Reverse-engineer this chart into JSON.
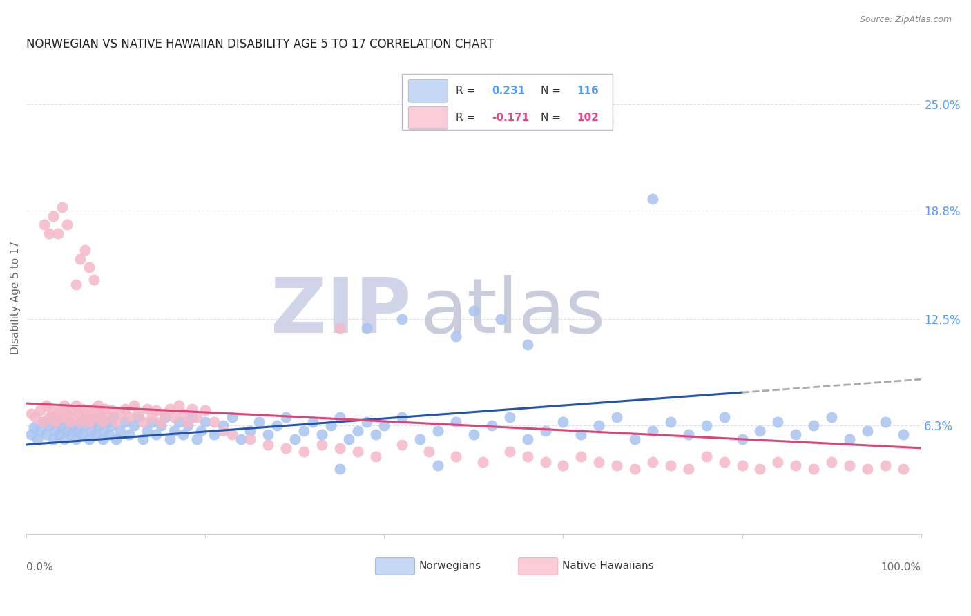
{
  "title": "NORWEGIAN VS NATIVE HAWAIIAN DISABILITY AGE 5 TO 17 CORRELATION CHART",
  "source": "Source: ZipAtlas.com",
  "ylabel": "Disability Age 5 to 17",
  "ytick_labels": [
    "6.3%",
    "12.5%",
    "18.8%",
    "25.0%"
  ],
  "ytick_values": [
    0.063,
    0.125,
    0.188,
    0.25
  ],
  "xmin": 0.0,
  "xmax": 1.0,
  "ymin": 0.0,
  "ymax": 0.275,
  "norwegian_R": "0.231",
  "norwegian_N": "116",
  "hawaiian_R": "-0.171",
  "hawaiian_N": "102",
  "blue_dot_color": "#a8c4f0",
  "pink_dot_color": "#f5b8c8",
  "blue_line_color": "#2255aa",
  "pink_line_color": "#dd4477",
  "dash_line_color": "#aaaaaa",
  "legend_blue_fill": "#c5d8f5",
  "legend_pink_fill": "#f9ccd8",
  "watermark_zip_color": "#d0d4e8",
  "watermark_atlas_color": "#c8ccdc",
  "grid_color": "#e0e0ec",
  "title_color": "#222222",
  "source_color": "#888888",
  "axis_color": "#666666",
  "right_tick_color": "#5599ff",
  "norwegian_scatter_x": [
    0.005,
    0.008,
    0.012,
    0.015,
    0.018,
    0.022,
    0.025,
    0.028,
    0.03,
    0.032,
    0.035,
    0.037,
    0.04,
    0.042,
    0.045,
    0.047,
    0.05,
    0.052,
    0.055,
    0.057,
    0.06,
    0.062,
    0.065,
    0.067,
    0.07,
    0.072,
    0.075,
    0.077,
    0.08,
    0.082,
    0.085,
    0.087,
    0.09,
    0.092,
    0.095,
    0.097,
    0.1,
    0.105,
    0.11,
    0.115,
    0.12,
    0.125,
    0.13,
    0.135,
    0.14,
    0.145,
    0.15,
    0.155,
    0.16,
    0.165,
    0.17,
    0.175,
    0.18,
    0.185,
    0.19,
    0.195,
    0.2,
    0.21,
    0.22,
    0.23,
    0.24,
    0.25,
    0.26,
    0.27,
    0.28,
    0.29,
    0.3,
    0.31,
    0.32,
    0.33,
    0.34,
    0.35,
    0.36,
    0.37,
    0.38,
    0.39,
    0.4,
    0.42,
    0.44,
    0.46,
    0.48,
    0.5,
    0.52,
    0.54,
    0.56,
    0.58,
    0.6,
    0.62,
    0.64,
    0.66,
    0.68,
    0.7,
    0.72,
    0.74,
    0.76,
    0.78,
    0.8,
    0.82,
    0.84,
    0.86,
    0.88,
    0.9,
    0.92,
    0.94,
    0.96,
    0.98,
    0.65,
    0.7,
    0.53,
    0.56,
    0.48,
    0.5,
    0.42,
    0.38,
    0.46,
    0.35
  ],
  "norwegian_scatter_y": [
    0.058,
    0.062,
    0.055,
    0.06,
    0.065,
    0.058,
    0.063,
    0.068,
    0.055,
    0.06,
    0.065,
    0.058,
    0.063,
    0.055,
    0.06,
    0.065,
    0.058,
    0.063,
    0.055,
    0.06,
    0.065,
    0.058,
    0.063,
    0.068,
    0.055,
    0.06,
    0.065,
    0.058,
    0.063,
    0.068,
    0.055,
    0.06,
    0.065,
    0.058,
    0.063,
    0.068,
    0.055,
    0.06,
    0.065,
    0.058,
    0.063,
    0.068,
    0.055,
    0.06,
    0.065,
    0.058,
    0.063,
    0.068,
    0.055,
    0.06,
    0.065,
    0.058,
    0.063,
    0.068,
    0.055,
    0.06,
    0.065,
    0.058,
    0.063,
    0.068,
    0.055,
    0.06,
    0.065,
    0.058,
    0.063,
    0.068,
    0.055,
    0.06,
    0.065,
    0.058,
    0.063,
    0.068,
    0.055,
    0.06,
    0.065,
    0.058,
    0.063,
    0.068,
    0.055,
    0.06,
    0.065,
    0.058,
    0.063,
    0.068,
    0.055,
    0.06,
    0.065,
    0.058,
    0.063,
    0.068,
    0.055,
    0.06,
    0.065,
    0.058,
    0.063,
    0.068,
    0.055,
    0.06,
    0.065,
    0.058,
    0.063,
    0.068,
    0.055,
    0.06,
    0.065,
    0.058,
    0.24,
    0.195,
    0.125,
    0.11,
    0.115,
    0.13,
    0.125,
    0.12,
    0.04,
    0.038
  ],
  "hawaiian_scatter_x": [
    0.005,
    0.01,
    0.015,
    0.018,
    0.022,
    0.025,
    0.028,
    0.032,
    0.035,
    0.038,
    0.04,
    0.042,
    0.045,
    0.048,
    0.05,
    0.052,
    0.055,
    0.058,
    0.06,
    0.062,
    0.065,
    0.068,
    0.07,
    0.072,
    0.075,
    0.078,
    0.08,
    0.082,
    0.085,
    0.088,
    0.09,
    0.095,
    0.1,
    0.105,
    0.11,
    0.115,
    0.12,
    0.125,
    0.13,
    0.135,
    0.14,
    0.145,
    0.15,
    0.155,
    0.16,
    0.165,
    0.17,
    0.175,
    0.18,
    0.185,
    0.19,
    0.2,
    0.21,
    0.22,
    0.23,
    0.25,
    0.27,
    0.29,
    0.31,
    0.33,
    0.35,
    0.37,
    0.39,
    0.42,
    0.45,
    0.48,
    0.51,
    0.54,
    0.56,
    0.58,
    0.6,
    0.62,
    0.64,
    0.66,
    0.68,
    0.7,
    0.72,
    0.74,
    0.76,
    0.78,
    0.8,
    0.82,
    0.84,
    0.86,
    0.88,
    0.9,
    0.92,
    0.94,
    0.96,
    0.98,
    0.06,
    0.065,
    0.07,
    0.075,
    0.055,
    0.04,
    0.045,
    0.03,
    0.035,
    0.02,
    0.025,
    0.35
  ],
  "hawaiian_scatter_y": [
    0.07,
    0.068,
    0.072,
    0.065,
    0.075,
    0.068,
    0.072,
    0.065,
    0.07,
    0.073,
    0.068,
    0.075,
    0.07,
    0.065,
    0.072,
    0.068,
    0.075,
    0.07,
    0.065,
    0.073,
    0.068,
    0.072,
    0.065,
    0.07,
    0.073,
    0.068,
    0.075,
    0.07,
    0.065,
    0.073,
    0.068,
    0.072,
    0.065,
    0.07,
    0.073,
    0.068,
    0.075,
    0.07,
    0.065,
    0.073,
    0.068,
    0.072,
    0.065,
    0.07,
    0.073,
    0.068,
    0.075,
    0.07,
    0.065,
    0.073,
    0.068,
    0.072,
    0.065,
    0.06,
    0.058,
    0.055,
    0.052,
    0.05,
    0.048,
    0.052,
    0.05,
    0.048,
    0.045,
    0.052,
    0.048,
    0.045,
    0.042,
    0.048,
    0.045,
    0.042,
    0.04,
    0.045,
    0.042,
    0.04,
    0.038,
    0.042,
    0.04,
    0.038,
    0.045,
    0.042,
    0.04,
    0.038,
    0.042,
    0.04,
    0.038,
    0.042,
    0.04,
    0.038,
    0.04,
    0.038,
    0.16,
    0.165,
    0.155,
    0.148,
    0.145,
    0.19,
    0.18,
    0.185,
    0.175,
    0.18,
    0.175,
    0.12
  ]
}
